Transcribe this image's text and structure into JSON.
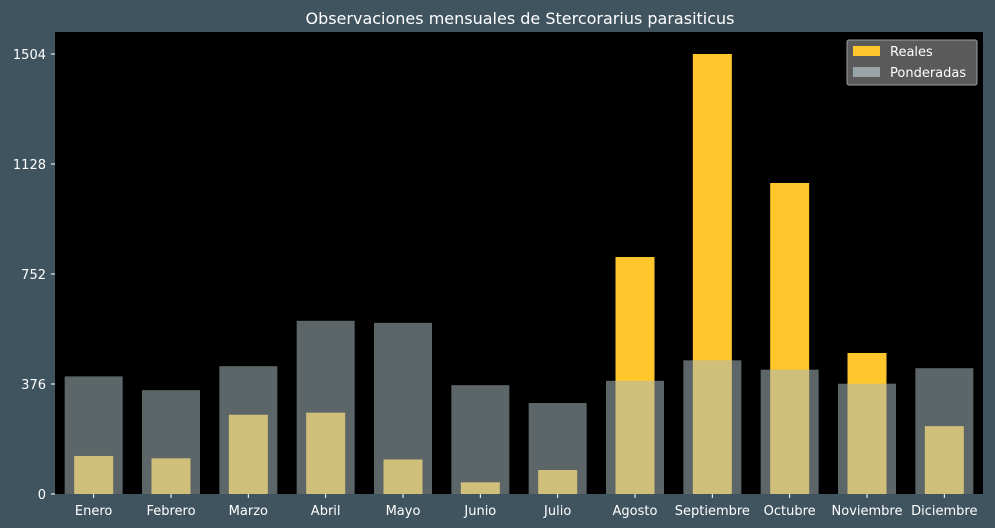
{
  "chart_data": {
    "type": "bar",
    "title": "Observaciones mensuales de Stercorarius parasiticus",
    "xlabel": "",
    "ylabel": "",
    "categories": [
      "Enero",
      "Febrero",
      "Marzo",
      "Abril",
      "Mayo",
      "Junio",
      "Julio",
      "Agosto",
      "Septiembre",
      "Octubre",
      "Noviembre",
      "Diciembre"
    ],
    "series": [
      {
        "name": "Reales",
        "color": "#ffc72c",
        "values": [
          130,
          122,
          271,
          278,
          118,
          40,
          82,
          810,
          1504,
          1063,
          482,
          232
        ]
      },
      {
        "name": "Ponderadas",
        "color": "#a8b8bc",
        "values": [
          402,
          355,
          437,
          592,
          585,
          372,
          311,
          387,
          457,
          425,
          377,
          430
        ]
      }
    ],
    "yticks": [
      0,
      376,
      752,
      1128,
      1504
    ],
    "ylim": [
      0,
      1504
    ],
    "legend_position": "top-right",
    "grid": false
  }
}
